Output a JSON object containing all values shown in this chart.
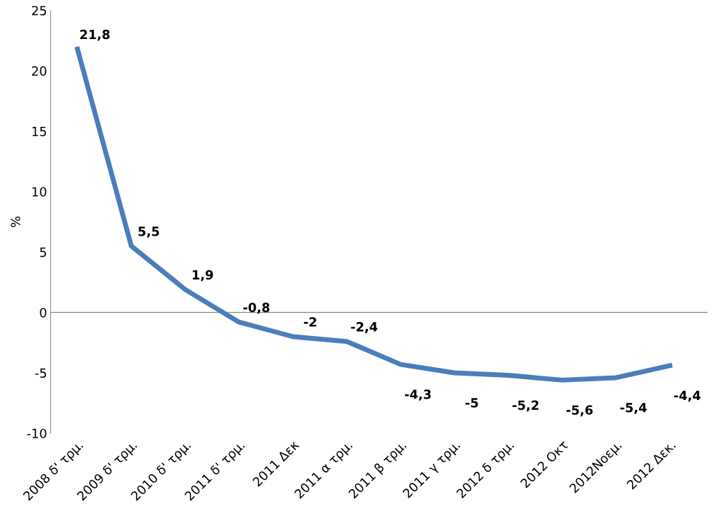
{
  "chart_data": {
    "type": "line",
    "ylabel": "%",
    "categories": [
      "2008 δ' τρμ.",
      "2009 δ' τρμ.",
      "2010 δ' τρμ.",
      "2011 δ' τρμ.",
      "2011 Δεκ",
      "2011 α τρμ.",
      "2011 β τρμ.",
      "2011 γ τρμ.",
      "2012 δ τρμ.",
      "2012 Οκτ",
      "2012Νοεμ.",
      "2012 Δεκ."
    ],
    "series": [
      {
        "color": "#4a7ebb",
        "values": [
          21.8,
          5.5,
          1.9,
          -0.8,
          -2,
          -2.4,
          -4.3,
          -5,
          -5.2,
          -5.6,
          -5.4,
          -4.4
        ],
        "value_labels": [
          "21,8",
          "5,5",
          "1,9",
          "-0,8",
          "-2",
          "-2,4",
          "-4,3",
          "-5",
          "-5,2",
          "-5,6",
          "-5,4",
          "-4,4"
        ]
      }
    ],
    "ylim": [
      -10,
      25
    ],
    "yticks": [
      -10,
      -5,
      0,
      5,
      10,
      15,
      20,
      25
    ],
    "grid": false,
    "ref_lines": [
      {
        "axis": "y",
        "value": 0,
        "color": "#888888"
      }
    ],
    "legend": false,
    "marker": "none",
    "line_style": "solid"
  }
}
